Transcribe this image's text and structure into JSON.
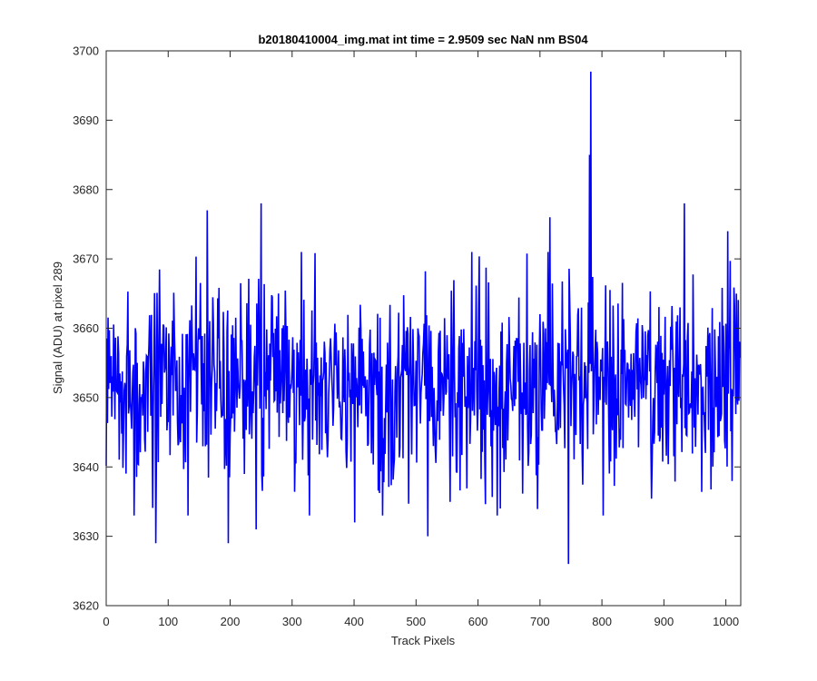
{
  "chart_data": {
    "type": "line",
    "title": "b20180410004_img.mat int time = 2.9509 sec  NaN nm BS04",
    "xlabel": "Track Pixels",
    "ylabel": "Signal (ADU) at pixel 289",
    "xlim": [
      0,
      1024
    ],
    "ylim": [
      3620,
      3700
    ],
    "xticks": [
      0,
      100,
      200,
      300,
      400,
      500,
      600,
      700,
      800,
      900,
      1000
    ],
    "yticks": [
      3620,
      3630,
      3640,
      3650,
      3660,
      3670,
      3680,
      3690,
      3700
    ],
    "grid": false,
    "line_color": "#0000ff",
    "n_points": 1024,
    "baseline": 3652,
    "noise_sd": 7,
    "notable_points": [
      {
        "x": 80,
        "y": 3629
      },
      {
        "x": 163,
        "y": 3677
      },
      {
        "x": 197,
        "y": 3629
      },
      {
        "x": 242,
        "y": 3631
      },
      {
        "x": 250,
        "y": 3678
      },
      {
        "x": 401,
        "y": 3632
      },
      {
        "x": 519,
        "y": 3630
      },
      {
        "x": 716,
        "y": 3676
      },
      {
        "x": 746,
        "y": 3626
      },
      {
        "x": 782,
        "y": 3697
      },
      {
        "x": 780,
        "y": 3685
      },
      {
        "x": 933,
        "y": 3678
      },
      {
        "x": 1003,
        "y": 3674
      }
    ]
  }
}
